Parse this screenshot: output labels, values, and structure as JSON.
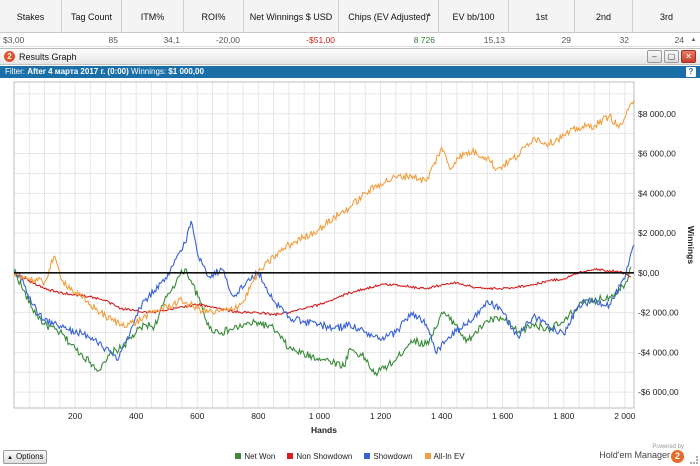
{
  "stats_table": {
    "columns": [
      "Stakes",
      "Tag Count",
      "ITM%",
      "ROI%",
      "Net Winnings $ USD",
      "Chips (EV Adjusted)",
      "EV bb/100",
      "1st",
      "2nd",
      "3rd"
    ],
    "sorted_column": "Chips (EV Adjusted)",
    "row": [
      "$3,00",
      "85",
      "34,1",
      "-20,00",
      "-$51,00",
      "8 726",
      "15,13",
      "29",
      "32",
      "24"
    ]
  },
  "window": {
    "title": "Results Graph",
    "app_icon_text": "2",
    "minimize": "–",
    "maximize": "▢",
    "close": "✕"
  },
  "filter": {
    "label": "Filter:",
    "text": "After 4 марта 2017 г. (0:00)",
    "winnings_label": "Winnings:",
    "winnings_value": "$1 000,00",
    "help": "?"
  },
  "chart_data": {
    "type": "line",
    "xlabel": "Hands",
    "ylabel": "Winnings",
    "xlim": [
      0,
      2030
    ],
    "ylim": [
      -6800,
      9600
    ],
    "x_ticks": [
      200,
      400,
      600,
      800,
      1000,
      1200,
      1400,
      1600,
      1800,
      2000
    ],
    "x_tick_labels": [
      "200",
      "400",
      "600",
      "800",
      "1 000",
      "1 200",
      "1 400",
      "1 600",
      "1 800",
      "2 000"
    ],
    "y_ticks": [
      -6000,
      -4000,
      -2000,
      0,
      2000,
      4000,
      6000,
      8000
    ],
    "y_tick_labels": [
      "-$6 000,00",
      "-$4 000,00",
      "-$2 000,00",
      "$0,00",
      "$2 000,00",
      "$4 000,00",
      "$6 000,00",
      "$8 000,00"
    ],
    "grid": true,
    "legend_position": "bottom-center",
    "series": [
      {
        "name": "Net Won",
        "color": "#3a8a3a",
        "x": [
          0,
          25,
          60,
          100,
          150,
          200,
          250,
          280,
          300,
          320,
          350,
          400,
          430,
          460,
          500,
          540,
          560,
          580,
          610,
          640,
          680,
          720,
          760,
          800,
          850,
          900,
          950,
          1000,
          1050,
          1080,
          1100,
          1150,
          1180,
          1200,
          1250,
          1300,
          1350,
          1380,
          1400,
          1450,
          1480,
          1500,
          1550,
          1600,
          1650,
          1700,
          1750,
          1800,
          1850,
          1900,
          1950,
          2000,
          2020
        ],
        "y": [
          200,
          -700,
          -1800,
          -2600,
          -3000,
          -3800,
          -4500,
          -4900,
          -4500,
          -4000,
          -3800,
          -3000,
          -2600,
          -2700,
          -1200,
          -200,
          200,
          -400,
          -1500,
          -2800,
          -3000,
          -2800,
          -2600,
          -2500,
          -2800,
          -3800,
          -4100,
          -4300,
          -4500,
          -4700,
          -3800,
          -4300,
          -5100,
          -4900,
          -4400,
          -3400,
          -3600,
          -2800,
          -2000,
          -2600,
          -3500,
          -3200,
          -2400,
          -2300,
          -3000,
          -2600,
          -2800,
          -2500,
          -1600,
          -1400,
          -1200,
          -600,
          300
        ]
      },
      {
        "name": "Non Showdown",
        "color": "#d42020",
        "x": [
          0,
          50,
          100,
          150,
          200,
          250,
          300,
          350,
          400,
          450,
          500,
          550,
          600,
          650,
          700,
          750,
          800,
          850,
          900,
          950,
          1000,
          1050,
          1100,
          1150,
          1200,
          1250,
          1300,
          1350,
          1400,
          1450,
          1500,
          1550,
          1600,
          1650,
          1700,
          1750,
          1800,
          1850,
          1900,
          1950,
          2000,
          2020
        ],
        "y": [
          0,
          -400,
          -800,
          -1000,
          -1100,
          -1200,
          -1400,
          -1800,
          -1900,
          -2000,
          -1900,
          -1700,
          -1600,
          -1700,
          -1900,
          -2000,
          -2000,
          -2100,
          -2000,
          -1800,
          -1600,
          -1300,
          -1000,
          -800,
          -600,
          -600,
          -700,
          -800,
          -600,
          -500,
          -700,
          -800,
          -800,
          -700,
          -600,
          -400,
          -300,
          0,
          200,
          100,
          0,
          -200
        ]
      },
      {
        "name": "Showdown",
        "color": "#3a62d6",
        "x": [
          0,
          30,
          60,
          100,
          140,
          180,
          220,
          260,
          300,
          340,
          380,
          420,
          460,
          500,
          530,
          560,
          580,
          600,
          640,
          680,
          720,
          760,
          800,
          850,
          900,
          950,
          1000,
          1050,
          1100,
          1150,
          1200,
          1250,
          1300,
          1350,
          1380,
          1420,
          1460,
          1500,
          1550,
          1600,
          1650,
          1700,
          1750,
          1800,
          1850,
          1900,
          1950,
          2000,
          2030
        ],
        "y": [
          100,
          -400,
          -1600,
          -2400,
          -2600,
          -2900,
          -3000,
          -3400,
          -3800,
          -4400,
          -3000,
          -1500,
          -900,
          -300,
          700,
          1500,
          2600,
          1000,
          -200,
          200,
          -1200,
          -500,
          0,
          -1400,
          -2200,
          -2500,
          -2600,
          -2800,
          -2600,
          -3000,
          -3400,
          -3000,
          -2000,
          -2600,
          -4000,
          -3300,
          -2800,
          -2400,
          -1400,
          -2000,
          -3200,
          -2200,
          -2600,
          -3100,
          -1600,
          -1400,
          -1600,
          -300,
          1400
        ]
      },
      {
        "name": "All-In EV",
        "color": "#f0a040",
        "x": [
          0,
          50,
          100,
          130,
          160,
          200,
          250,
          300,
          350,
          400,
          450,
          500,
          550,
          600,
          650,
          700,
          750,
          780,
          800,
          850,
          900,
          950,
          1000,
          1050,
          1100,
          1150,
          1200,
          1250,
          1300,
          1350,
          1400,
          1430,
          1450,
          1500,
          1550,
          1580,
          1600,
          1650,
          1700,
          1750,
          1800,
          1850,
          1900,
          1950,
          1980,
          2000,
          2030
        ],
        "y": [
          0,
          -300,
          -500,
          800,
          -400,
          -1000,
          -1600,
          -2200,
          -2600,
          -2500,
          -2000,
          -1700,
          -1400,
          -1800,
          -2000,
          -1900,
          -1500,
          -500,
          0,
          800,
          1400,
          1800,
          2200,
          2800,
          3300,
          4000,
          4500,
          4800,
          4900,
          4600,
          6300,
          5200,
          5800,
          6100,
          5800,
          5200,
          5400,
          5900,
          6800,
          6500,
          6900,
          7300,
          7400,
          7900,
          7300,
          7800,
          8700
        ]
      }
    ]
  },
  "options_button": {
    "label": "Options",
    "arrow": "▲"
  },
  "brand": {
    "powered": "Powered by",
    "name": "Hold'em Manager",
    "logo": "2"
  }
}
